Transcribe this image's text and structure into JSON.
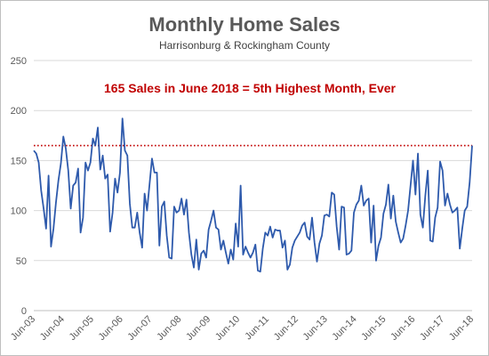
{
  "chart_data": {
    "type": "line",
    "title": "Monthly Home Sales",
    "subtitle": "Harrisonburg & Rockingham County",
    "annotation": "165 Sales in June 2018 = 5th Highest Month, Ever",
    "reference_line": {
      "value": 165,
      "color": "#c00000",
      "style": "dotted"
    },
    "series_color": "#2e5aac",
    "ylim": [
      0,
      250
    ],
    "yticks": [
      0,
      50,
      100,
      150,
      200,
      250
    ],
    "grid": true,
    "legend": "none",
    "x_start": "Jun-03",
    "x_end": "Jun-18",
    "xticks": [
      "Jun-03",
      "Jun-04",
      "Jun-05",
      "Jun-06",
      "Jun-07",
      "Jun-08",
      "Jun-09",
      "Jun-10",
      "Jun-11",
      "Jun-12",
      "Jun-13",
      "Jun-14",
      "Jun-15",
      "Jun-16",
      "Jun-17",
      "Jun-18"
    ],
    "series": [
      {
        "values": [
          160,
          157,
          148,
          120,
          102,
          82,
          135,
          64,
          82,
          108,
          130,
          147,
          174,
          162,
          140,
          102,
          125,
          128,
          142,
          78,
          93,
          148,
          140,
          148,
          172,
          165,
          183,
          141,
          155,
          132,
          136,
          79,
          98,
          132,
          118,
          138,
          192,
          160,
          155,
          107,
          83,
          83,
          98,
          78,
          63,
          117,
          100,
          126,
          152,
          138,
          138,
          65,
          104,
          109,
          75,
          53,
          52,
          104,
          98,
          100,
          112,
          96,
          111,
          78,
          56,
          43,
          71,
          41,
          57,
          60,
          53,
          81,
          90,
          100,
          83,
          81,
          61,
          70,
          58,
          47,
          61,
          51,
          87,
          64,
          125,
          56,
          64,
          58,
          53,
          58,
          66,
          40,
          39,
          62,
          78,
          75,
          84,
          73,
          81,
          80,
          80,
          63,
          70,
          41,
          46,
          63,
          70,
          74,
          78,
          85,
          88,
          74,
          71,
          93,
          68,
          49,
          67,
          75,
          95,
          96,
          94,
          118,
          116,
          84,
          61,
          104,
          103,
          56,
          57,
          60,
          98,
          106,
          110,
          125,
          105,
          110,
          112,
          68,
          105,
          50,
          65,
          73,
          97,
          106,
          126,
          92,
          115,
          89,
          78,
          68,
          72,
          85,
          100,
          125,
          150,
          116,
          157,
          96,
          83,
          115,
          140,
          70,
          69,
          93,
          103,
          149,
          140,
          105,
          117,
          106,
          98,
          100,
          103,
          62,
          82,
          100,
          104,
          128,
          165
        ]
      }
    ]
  }
}
